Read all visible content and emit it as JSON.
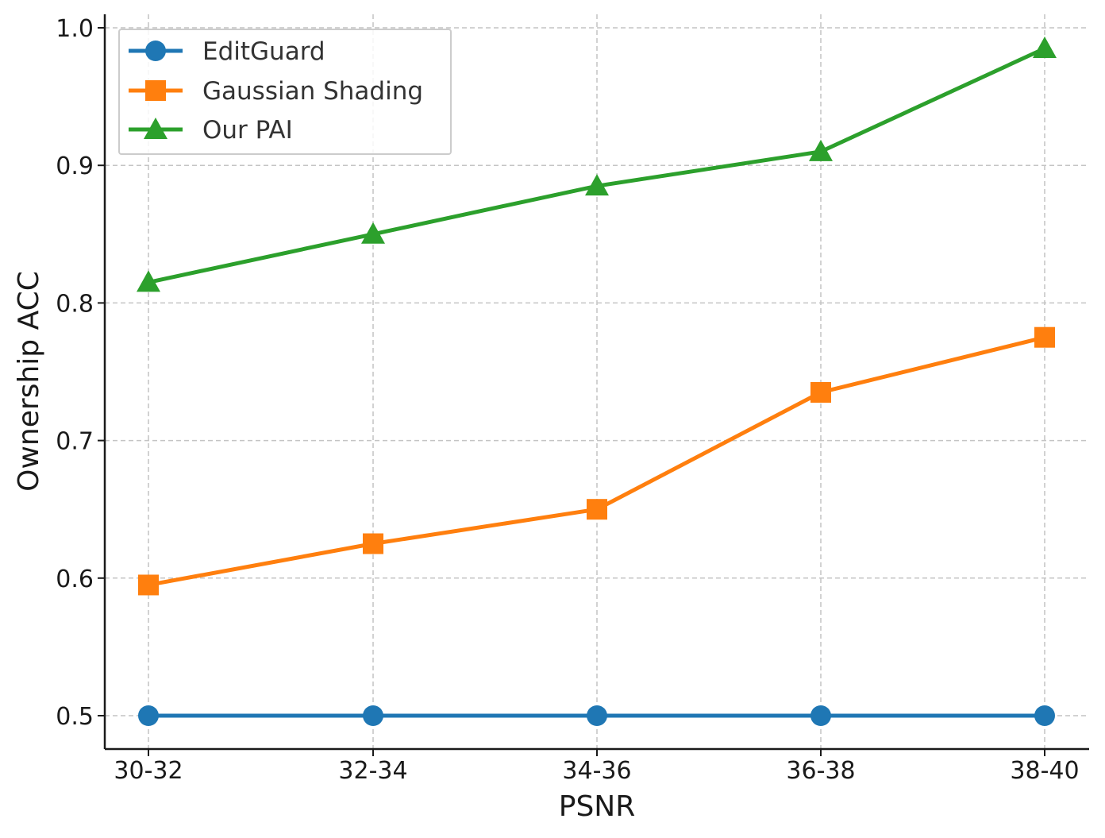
{
  "chart_data": {
    "type": "line",
    "title": "",
    "xlabel": "PSNR",
    "ylabel": "Ownership ACC",
    "categories": [
      "30-32",
      "32-34",
      "34-36",
      "36-38",
      "38-40"
    ],
    "ylim": [
      0.475,
      1.01
    ],
    "yticks": [
      0.5,
      0.6,
      0.7,
      0.8,
      0.9,
      1.0
    ],
    "ytick_labels": [
      "0.5",
      "0.6",
      "0.7",
      "0.8",
      "0.9",
      "1.0"
    ],
    "grid": true,
    "legend_position": "top-left",
    "series": [
      {
        "name": "EditGuard",
        "color": "#1f77b4",
        "marker": "circle",
        "values": [
          0.5,
          0.5,
          0.5,
          0.5,
          0.5
        ]
      },
      {
        "name": "Gaussian Shading",
        "color": "#ff7f0e",
        "marker": "square",
        "values": [
          0.595,
          0.625,
          0.65,
          0.735,
          0.775
        ]
      },
      {
        "name": "Our PAI",
        "color": "#2ca02c",
        "marker": "triangle",
        "values": [
          0.815,
          0.85,
          0.885,
          0.91,
          0.985
        ]
      }
    ]
  }
}
